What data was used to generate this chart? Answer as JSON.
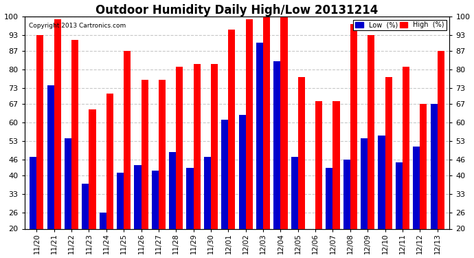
{
  "title": "Outdoor Humidity Daily High/Low 20131214",
  "copyright": "Copyright 2013 Cartronics.com",
  "dates": [
    "11/20",
    "11/21",
    "11/22",
    "11/23",
    "11/24",
    "11/25",
    "11/26",
    "11/27",
    "11/28",
    "11/29",
    "11/30",
    "12/01",
    "12/02",
    "12/03",
    "12/04",
    "12/05",
    "12/06",
    "12/07",
    "12/08",
    "12/09",
    "12/10",
    "12/11",
    "12/12",
    "12/13"
  ],
  "high": [
    93,
    99,
    91,
    65,
    71,
    87,
    76,
    76,
    81,
    82,
    82,
    95,
    99,
    100,
    100,
    77,
    68,
    68,
    97,
    93,
    77,
    81,
    67,
    87
  ],
  "low": [
    47,
    74,
    54,
    37,
    26,
    41,
    44,
    42,
    49,
    43,
    47,
    61,
    63,
    90,
    83,
    47,
    20,
    43,
    46,
    54,
    55,
    45,
    51,
    67
  ],
  "high_color": "#ff0000",
  "low_color": "#0000cc",
  "background_color": "#ffffff",
  "ymin": 20,
  "ymax": 100,
  "yticks": [
    20,
    26,
    33,
    40,
    46,
    53,
    60,
    67,
    73,
    80,
    87,
    93,
    100
  ],
  "grid_color": "#c8c8c8",
  "title_fontsize": 12,
  "legend_low_label": "Low  (%)",
  "legend_high_label": "High  (%)"
}
